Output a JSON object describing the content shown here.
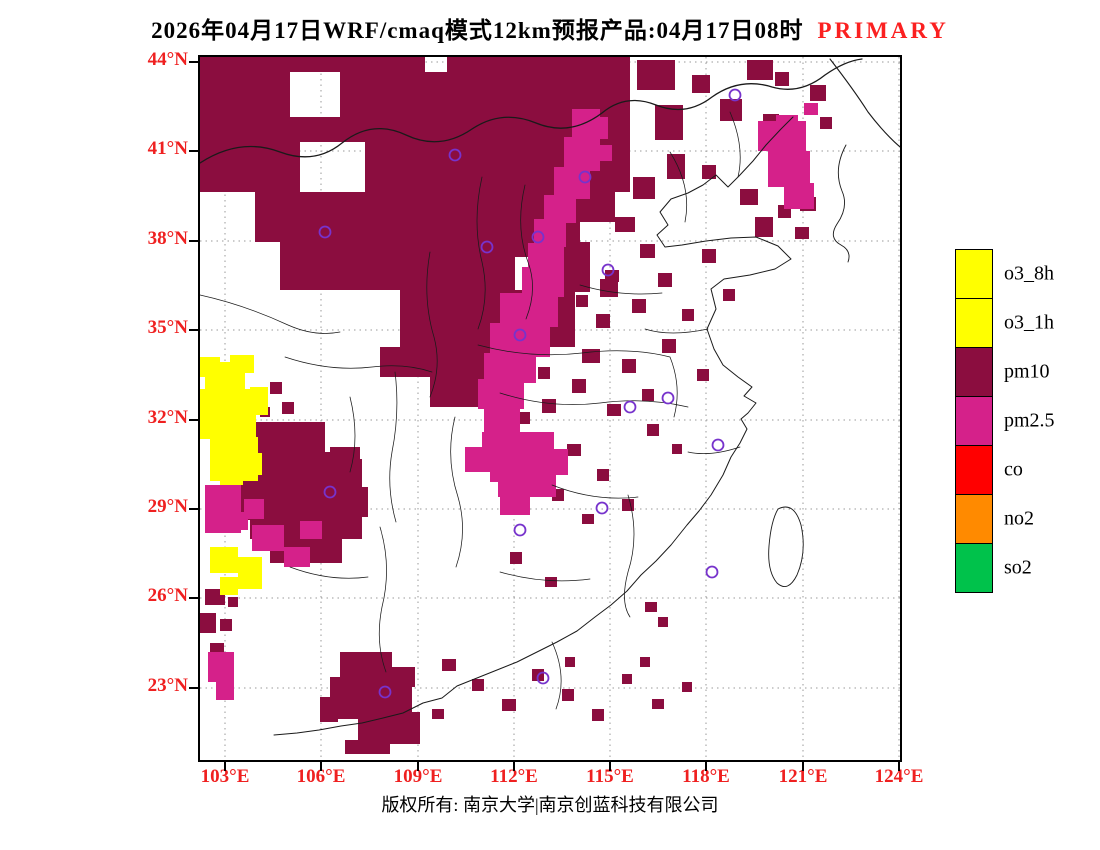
{
  "title": {
    "main": "2026年04月17日WRF/cmaq模式12km预报产品:04月17日08时",
    "badge": "PRIMARY"
  },
  "axes": {
    "lat_ticks": [
      {
        "label": "44°N",
        "pos": 5
      },
      {
        "label": "41°N",
        "pos": 94
      },
      {
        "label": "38°N",
        "pos": 184
      },
      {
        "label": "35°N",
        "pos": 273
      },
      {
        "label": "32°N",
        "pos": 363
      },
      {
        "label": "29°N",
        "pos": 452
      },
      {
        "label": "26°N",
        "pos": 541
      },
      {
        "label": "23°N",
        "pos": 631
      }
    ],
    "lon_ticks": [
      {
        "label": "103°E",
        "pos": 25
      },
      {
        "label": "106°E",
        "pos": 121
      },
      {
        "label": "109°E",
        "pos": 218
      },
      {
        "label": "112°E",
        "pos": 314
      },
      {
        "label": "115°E",
        "pos": 410
      },
      {
        "label": "118°E",
        "pos": 506
      },
      {
        "label": "121°E",
        "pos": 603
      },
      {
        "label": "124°E",
        "pos": 699
      }
    ]
  },
  "legend": {
    "items": [
      {
        "label": "o3_8h",
        "color": "#FFFF00"
      },
      {
        "label": "o3_1h",
        "color": "#FFFF00"
      },
      {
        "label": "pm10",
        "color": "#8B0D3F"
      },
      {
        "label": "pm2.5",
        "color": "#D5218A"
      },
      {
        "label": "co",
        "color": "#FF0000"
      },
      {
        "label": "no2",
        "color": "#FF8A00"
      },
      {
        "label": "so2",
        "color": "#00C24B"
      }
    ]
  },
  "footer": {
    "copyright": "版权所有: 南京大学|南京创蓝科技有限公司"
  },
  "colors": {
    "pm10": "#8B0D3F",
    "pm25": "#D5218A",
    "o3": "#FFFF00",
    "co": "#FF0000",
    "no2": "#FF8A00",
    "so2": "#00C24B",
    "marker": "#7733CC",
    "grid": "#999999",
    "axis_label_red": "#EF2020",
    "title_red": "#FB2020"
  },
  "chart_data": {
    "type": "map",
    "extent": {
      "lon": [
        103,
        124
      ],
      "lat": [
        23,
        44
      ]
    },
    "dominant_pollutant_note": "cells colored by primary pollutant: pm10 dark maroon over north/northwest and southwest, pm2.5 magenta band through Hebei-Henan-Hubei and northeast patch, o3 yellow over western Sichuan edge",
    "regions": {
      "pm10_rects": [
        [
          0,
          0,
          225,
          15
        ],
        [
          247,
          0,
          183,
          15
        ],
        [
          0,
          15,
          90,
          45
        ],
        [
          140,
          15,
          290,
          45
        ],
        [
          0,
          60,
          430,
          25
        ],
        [
          0,
          85,
          100,
          50
        ],
        [
          165,
          85,
          265,
          50
        ],
        [
          55,
          135,
          320,
          50
        ],
        [
          375,
          135,
          40,
          30
        ],
        [
          80,
          185,
          235,
          48
        ],
        [
          300,
          160,
          80,
          40
        ],
        [
          330,
          185,
          60,
          50
        ],
        [
          200,
          233,
          175,
          57
        ],
        [
          180,
          290,
          140,
          30
        ],
        [
          230,
          320,
          80,
          30
        ],
        [
          355,
          210,
          25,
          25
        ],
        [
          437,
          3,
          38,
          30
        ],
        [
          455,
          48,
          28,
          35
        ],
        [
          492,
          18,
          18,
          18
        ],
        [
          520,
          42,
          22,
          22
        ],
        [
          547,
          3,
          26,
          20
        ],
        [
          575,
          15,
          14,
          14
        ],
        [
          563,
          57,
          16,
          16
        ],
        [
          620,
          60,
          12,
          12
        ],
        [
          610,
          28,
          16,
          16
        ],
        [
          433,
          120,
          22,
          22
        ],
        [
          467,
          97,
          18,
          25
        ],
        [
          502,
          108,
          14,
          14
        ],
        [
          540,
          132,
          18,
          16
        ],
        [
          578,
          148,
          13,
          13
        ],
        [
          600,
          140,
          16,
          14
        ],
        [
          595,
          170,
          14,
          12
        ],
        [
          555,
          160,
          18,
          20
        ],
        [
          415,
          160,
          20,
          15
        ],
        [
          440,
          187,
          15,
          14
        ],
        [
          400,
          222,
          18,
          18
        ],
        [
          432,
          242,
          14,
          14
        ],
        [
          458,
          216,
          14,
          14
        ],
        [
          482,
          252,
          12,
          12
        ],
        [
          502,
          192,
          14,
          14
        ],
        [
          523,
          232,
          12,
          12
        ],
        [
          396,
          257,
          14,
          14
        ],
        [
          376,
          238,
          12,
          12
        ],
        [
          352,
          267,
          14,
          14
        ],
        [
          382,
          292,
          18,
          14
        ],
        [
          422,
          302,
          14,
          14
        ],
        [
          462,
          282,
          14,
          14
        ],
        [
          497,
          312,
          12,
          12
        ],
        [
          372,
          322,
          14,
          14
        ],
        [
          342,
          342,
          14,
          14
        ],
        [
          442,
          332,
          12,
          12
        ],
        [
          407,
          347,
          14,
          12
        ],
        [
          338,
          310,
          12,
          12
        ],
        [
          317,
          355,
          13,
          12
        ],
        [
          405,
          213,
          14,
          12
        ],
        [
          70,
          325,
          12,
          12
        ],
        [
          82,
          345,
          12,
          12
        ],
        [
          60,
          350,
          10,
          10
        ],
        [
          55,
          365,
          70,
          35
        ],
        [
          40,
          395,
          112,
          48
        ],
        [
          50,
          440,
          112,
          42
        ],
        [
          70,
          480,
          72,
          26
        ],
        [
          120,
          402,
          42,
          32
        ],
        [
          95,
          425,
          60,
          55
        ],
        [
          150,
          430,
          18,
          30
        ],
        [
          35,
          438,
          20,
          25
        ],
        [
          130,
          390,
          30,
          20
        ],
        [
          5,
          532,
          20,
          16
        ],
        [
          0,
          556,
          16,
          20
        ],
        [
          20,
          562,
          12,
          12
        ],
        [
          10,
          586,
          14,
          12
        ],
        [
          28,
          540,
          10,
          10
        ],
        [
          140,
          595,
          52,
          30
        ],
        [
          130,
          620,
          82,
          42
        ],
        [
          158,
          655,
          62,
          32
        ],
        [
          145,
          683,
          45,
          14
        ],
        [
          190,
          610,
          25,
          20
        ],
        [
          120,
          640,
          18,
          25
        ],
        [
          242,
          602,
          14,
          12
        ],
        [
          272,
          622,
          12,
          12
        ],
        [
          302,
          642,
          14,
          12
        ],
        [
          332,
          612,
          12,
          12
        ],
        [
          362,
          632,
          12,
          12
        ],
        [
          392,
          652,
          12,
          12
        ],
        [
          422,
          617,
          10,
          10
        ],
        [
          452,
          642,
          12,
          10
        ],
        [
          232,
          652,
          12,
          10
        ],
        [
          482,
          625,
          10,
          10
        ],
        [
          440,
          600,
          10,
          10
        ],
        [
          365,
          600,
          10,
          10
        ],
        [
          445,
          545,
          12,
          10
        ],
        [
          458,
          560,
          10,
          10
        ],
        [
          367,
          387,
          14,
          12
        ],
        [
          397,
          412,
          12,
          12
        ],
        [
          352,
          432,
          12,
          12
        ],
        [
          422,
          442,
          12,
          12
        ],
        [
          382,
          457,
          12,
          10
        ],
        [
          447,
          367,
          12,
          12
        ],
        [
          472,
          387,
          10,
          10
        ],
        [
          340,
          415,
          12,
          12
        ],
        [
          310,
          495,
          12,
          12
        ],
        [
          345,
          520,
          12,
          10
        ]
      ],
      "pm25_rects": [
        [
          372,
          52,
          28,
          32
        ],
        [
          364,
          80,
          36,
          34
        ],
        [
          354,
          110,
          36,
          32
        ],
        [
          344,
          138,
          32,
          28
        ],
        [
          334,
          162,
          32,
          28
        ],
        [
          328,
          186,
          36,
          28
        ],
        [
          322,
          210,
          42,
          30
        ],
        [
          300,
          236,
          58,
          34
        ],
        [
          290,
          266,
          60,
          34
        ],
        [
          284,
          296,
          52,
          30
        ],
        [
          278,
          322,
          46,
          30
        ],
        [
          284,
          350,
          36,
          32
        ],
        [
          290,
          380,
          30,
          45
        ],
        [
          282,
          375,
          72,
          40
        ],
        [
          298,
          412,
          58,
          28
        ],
        [
          340,
          392,
          28,
          26
        ],
        [
          265,
          390,
          20,
          25
        ],
        [
          300,
          438,
          30,
          20
        ],
        [
          388,
          60,
          20,
          22
        ],
        [
          398,
          88,
          14,
          16
        ],
        [
          558,
          64,
          48,
          30
        ],
        [
          568,
          94,
          42,
          36
        ],
        [
          584,
          126,
          30,
          26
        ],
        [
          576,
          58,
          22,
          12
        ],
        [
          604,
          46,
          14,
          12
        ],
        [
          52,
          468,
          32,
          26
        ],
        [
          84,
          490,
          26,
          20
        ],
        [
          44,
          442,
          20,
          20
        ],
        [
          100,
          464,
          22,
          18
        ],
        [
          5,
          428,
          36,
          48
        ],
        [
          30,
          455,
          18,
          18
        ],
        [
          8,
          595,
          26,
          30
        ],
        [
          16,
          625,
          18,
          18
        ]
      ],
      "o3_rects": [
        [
          5,
          305,
          40,
          32
        ],
        [
          0,
          332,
          56,
          50
        ],
        [
          10,
          380,
          48,
          44
        ],
        [
          30,
          298,
          24,
          18
        ],
        [
          50,
          330,
          18,
          28
        ],
        [
          46,
          396,
          16,
          22
        ],
        [
          0,
          300,
          20,
          20
        ],
        [
          20,
          420,
          23,
          8
        ],
        [
          10,
          490,
          28,
          26
        ],
        [
          38,
          500,
          24,
          32
        ],
        [
          20,
          520,
          18,
          18
        ]
      ]
    },
    "city_markers": [
      [
        255,
        98
      ],
      [
        385,
        120
      ],
      [
        125,
        175
      ],
      [
        338,
        180
      ],
      [
        287,
        190
      ],
      [
        535,
        38
      ],
      [
        408,
        213
      ],
      [
        320,
        278
      ],
      [
        430,
        350
      ],
      [
        468,
        341
      ],
      [
        518,
        388
      ],
      [
        130,
        435
      ],
      [
        320,
        473
      ],
      [
        402,
        451
      ],
      [
        512,
        515
      ],
      [
        343,
        621
      ],
      [
        185,
        635
      ]
    ]
  }
}
